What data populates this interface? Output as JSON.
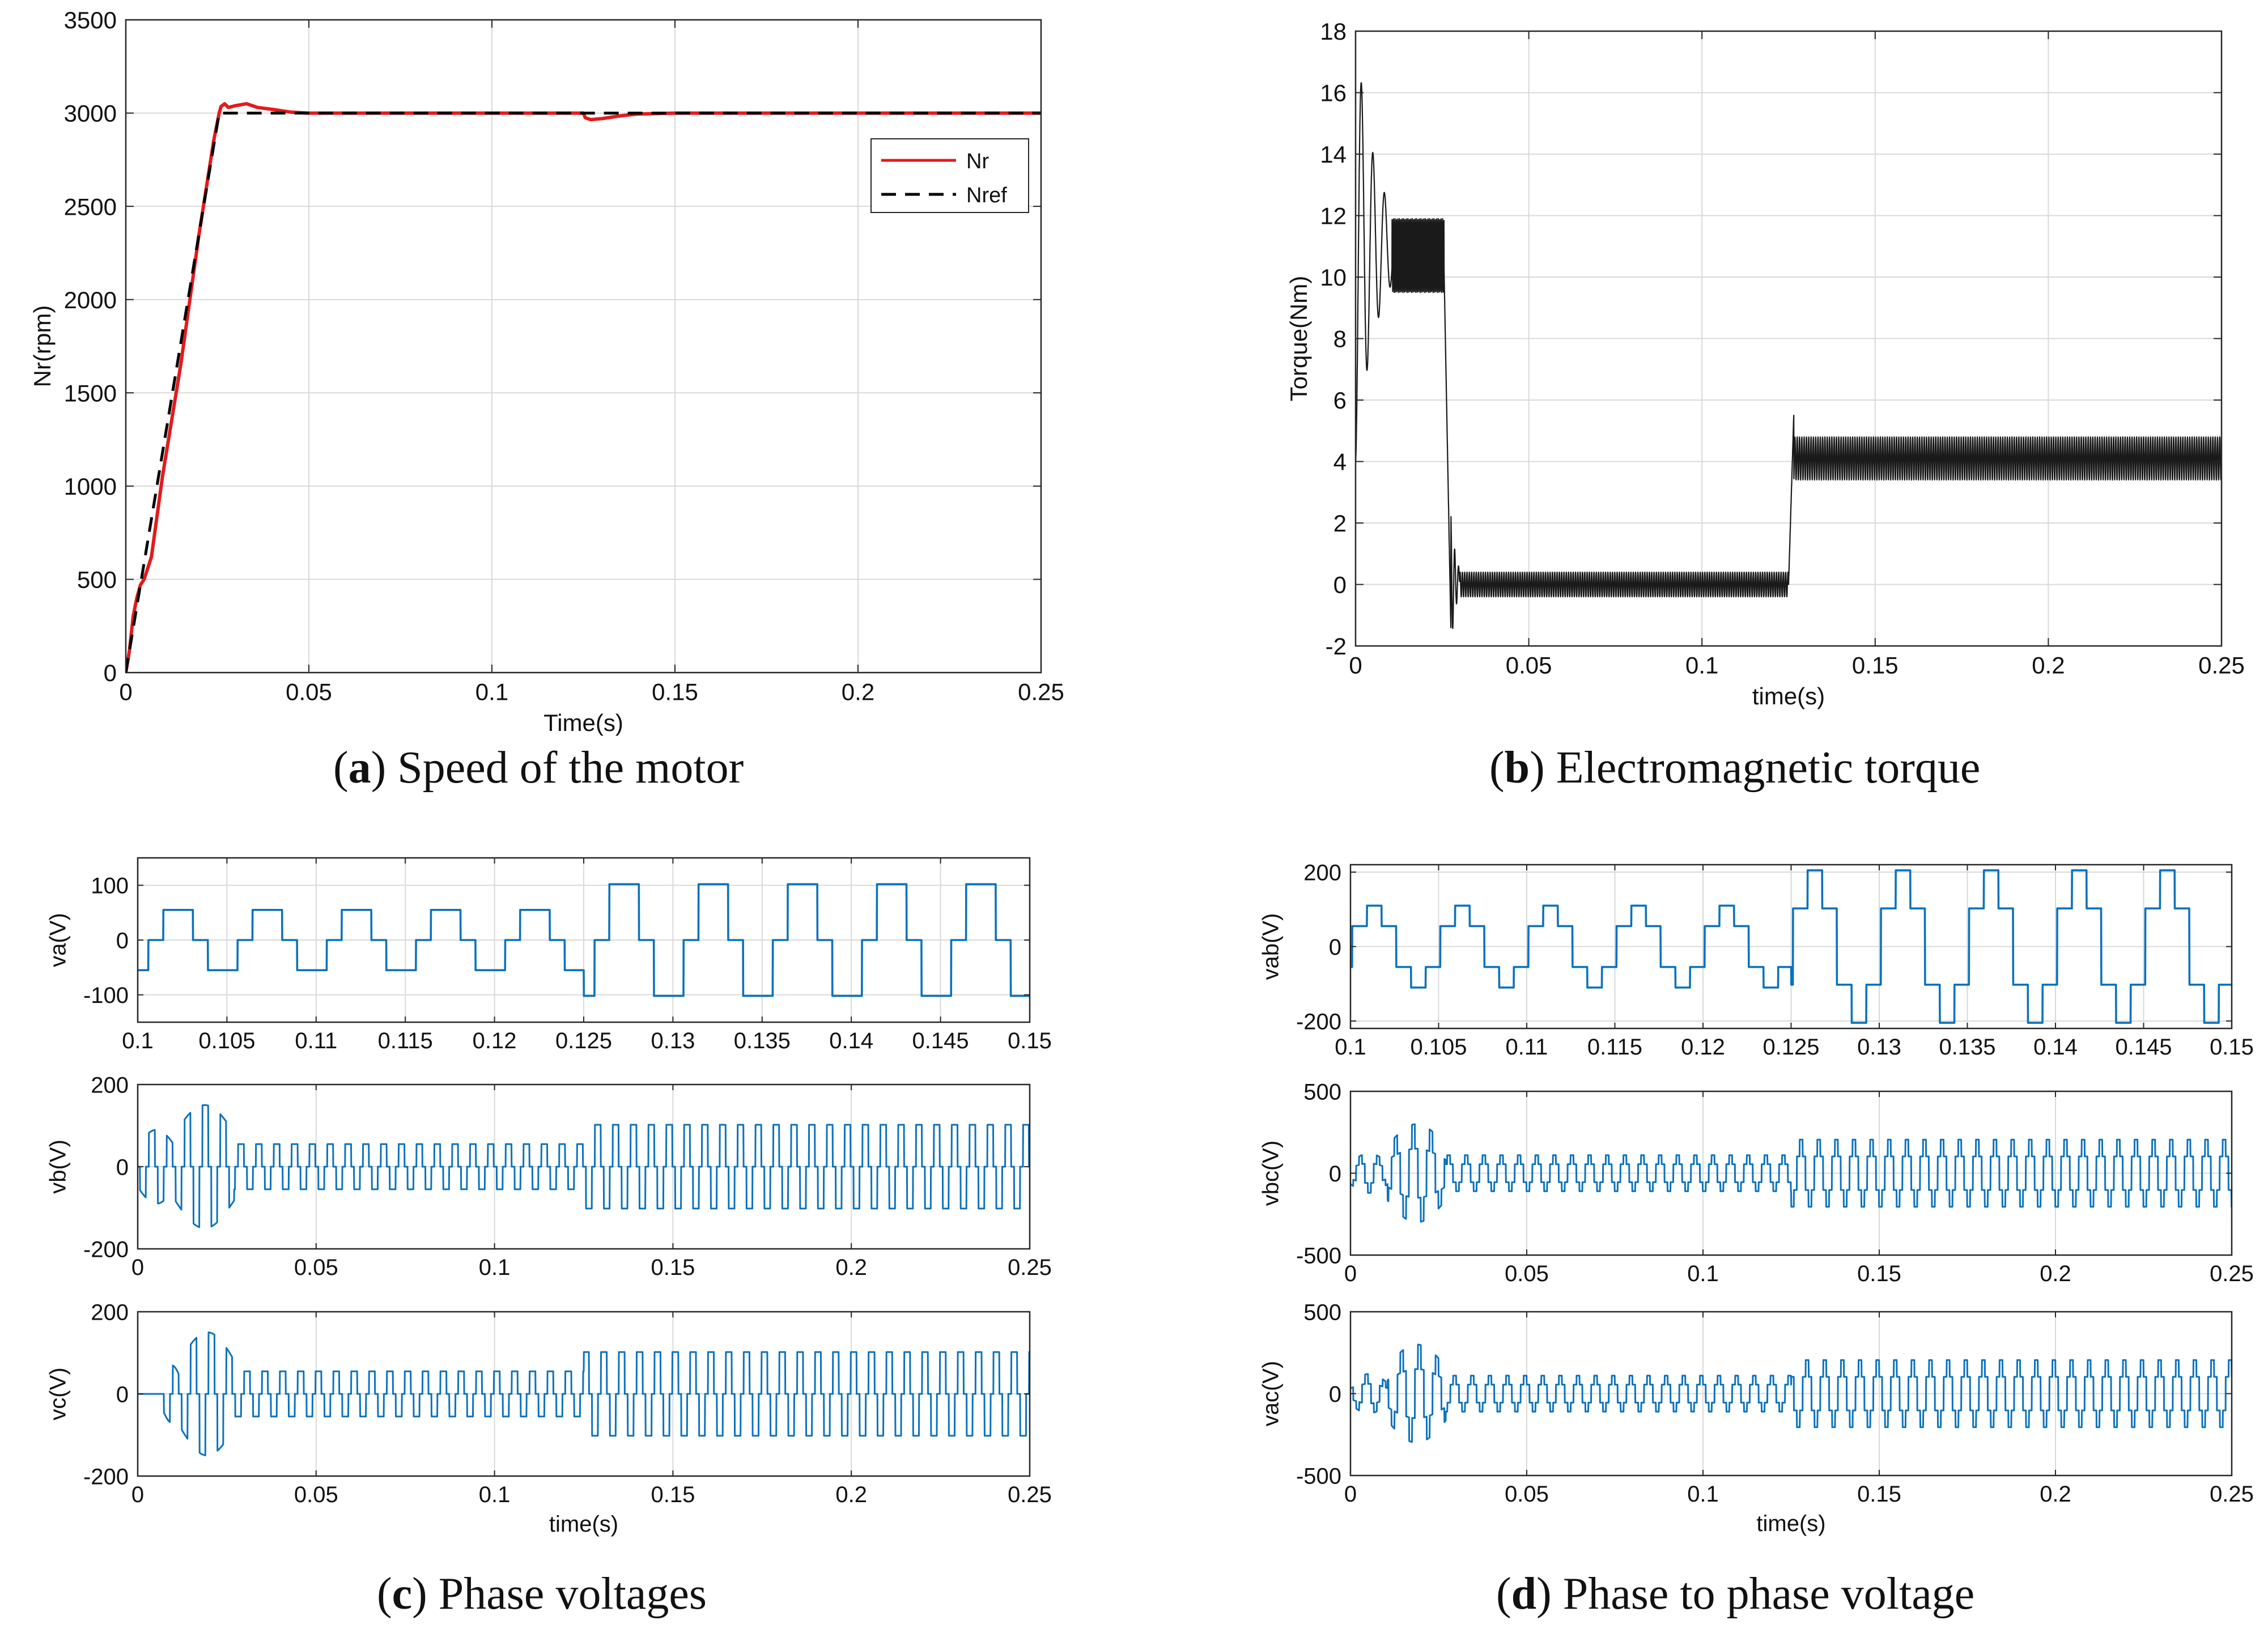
{
  "colors": {
    "nr": "#e41a1c",
    "nref": "#000000",
    "torque": "#1a1a1a",
    "voltage": "#0b72bd",
    "grid": "#d9d9d9",
    "axis": "#262626"
  },
  "captions": {
    "a": {
      "letter": "a",
      "text": ") Speed of the motor"
    },
    "b": {
      "letter": "b",
      "text": ") Electromagnetic torque"
    },
    "c": {
      "letter": "c",
      "text": ") Phase voltages"
    },
    "d": {
      "letter": "d",
      "text": ") Phase to phase voltage"
    }
  },
  "chart_data": [
    {
      "id": "speed",
      "type": "line",
      "title": "(a) Speed of the motor",
      "xlabel": "Time(s)",
      "ylabel": "Nr(rpm)",
      "xlim": [
        0,
        0.25
      ],
      "ylim": [
        0,
        3500
      ],
      "xticks": [
        0,
        0.05,
        0.1,
        0.15,
        0.2,
        0.25
      ],
      "xtick_labels": [
        "0",
        "0.05",
        "0.1",
        "0.15",
        "0.2",
        "0.25"
      ],
      "yticks": [
        0,
        500,
        1000,
        1500,
        2000,
        2500,
        3000,
        3500
      ],
      "ytick_labels": [
        "0",
        "500",
        "1000",
        "1500",
        "2000",
        "2500",
        "3000",
        "3500"
      ],
      "grid": true,
      "legend": {
        "position": "right",
        "entries": [
          "Nr",
          "Nref"
        ]
      },
      "series": [
        {
          "name": "Nr",
          "style": "solid",
          "x": [
            0,
            0.001,
            0.002,
            0.003,
            0.004,
            0.005,
            0.007,
            0.01,
            0.015,
            0.02,
            0.024,
            0.0255,
            0.026,
            0.027,
            0.028,
            0.03,
            0.033,
            0.036,
            0.04,
            0.045,
            0.05,
            0.1,
            0.125,
            0.1255,
            0.127,
            0.13,
            0.135,
            0.14,
            0.15,
            0.25
          ],
          "y": [
            0,
            120,
            300,
            400,
            470,
            500,
            620,
            1050,
            1650,
            2350,
            2850,
            3000,
            3035,
            3050,
            3030,
            3040,
            3050,
            3030,
            3020,
            3005,
            3000,
            3000,
            3000,
            2975,
            2965,
            2970,
            2985,
            2995,
            3000,
            3000
          ]
        },
        {
          "name": "Nref",
          "style": "dashed",
          "x": [
            0,
            0.0255,
            0.25
          ],
          "y": [
            0,
            3000,
            3000
          ]
        }
      ]
    },
    {
      "id": "torque",
      "type": "line",
      "title": "(b) Electromagnetic torque",
      "xlabel": "time(s)",
      "ylabel": "Torque(Nm)",
      "xlim": [
        0,
        0.25
      ],
      "ylim": [
        -2,
        18
      ],
      "xticks": [
        0,
        0.05,
        0.1,
        0.15,
        0.2,
        0.25
      ],
      "xtick_labels": [
        "0",
        "0.05",
        "0.1",
        "0.15",
        "0.2",
        "0.25"
      ],
      "yticks": [
        -2,
        0,
        2,
        4,
        6,
        8,
        10,
        12,
        14,
        16,
        18
      ],
      "ytick_labels": [
        "-2",
        "0",
        "2",
        "4",
        "6",
        "8",
        "10",
        "12",
        "14",
        "16",
        "18"
      ],
      "grid": true,
      "series": [
        {
          "name": "Torque",
          "envelope": [
            {
              "t0": 0,
              "t1": 0.0105,
              "model": "damped",
              "mean": 11,
              "amp0": 7,
              "decay": 0.006,
              "freq": 300
            },
            {
              "t0": 0.0105,
              "t1": 0.0255,
              "model": "ripple",
              "mean": 10.7,
              "amp": 1.2,
              "freq": 2400
            },
            {
              "t0": 0.0255,
              "t1": 0.0275,
              "model": "ramp",
              "from": 10.5,
              "to": -1.4
            },
            {
              "t0": 0.0275,
              "t1": 0.03,
              "model": "damped",
              "mean": 0.1,
              "amp0": 2.2,
              "decay": 0.0015,
              "freq": 900
            },
            {
              "t0": 0.03,
              "t1": 0.125,
              "model": "ripple",
              "mean": 0,
              "amp": 0.4,
              "freq": 1500
            },
            {
              "t0": 0.125,
              "t1": 0.1265,
              "model": "ramp",
              "from": 0,
              "to": 5.5
            },
            {
              "t0": 0.1265,
              "t1": 0.25,
              "model": "ripple",
              "mean": 4.1,
              "amp": 0.7,
              "freq": 1500
            }
          ]
        }
      ]
    },
    {
      "id": "va",
      "type": "line",
      "ylabel": "va(V)",
      "xlim": [
        0.1,
        0.15
      ],
      "ylim": [
        -150,
        150
      ],
      "xticks": [
        0.1,
        0.105,
        0.11,
        0.115,
        0.12,
        0.125,
        0.13,
        0.135,
        0.14,
        0.145,
        0.15
      ],
      "xtick_labels": [
        "0.1",
        "0.105",
        "0.11",
        "0.115",
        "0.12",
        "0.125",
        "0.13",
        "0.135",
        "0.14",
        "0.145",
        "0.15"
      ],
      "yticks": [
        -100,
        0,
        100
      ],
      "ytick_labels": [
        "-100",
        "0",
        "100"
      ],
      "grid": true,
      "series": [
        {
          "name": "va",
          "waveform": "six-step-phase",
          "period": 0.005,
          "phase": 0.0006,
          "segments": [
            {
              "t0": 0.1,
              "t1": 0.125,
              "amp": 55
            },
            {
              "t0": 0.125,
              "t1": 0.15,
              "amp": 102
            }
          ]
        }
      ]
    },
    {
      "id": "vb",
      "type": "line",
      "ylabel": "vb(V)",
      "xlim": [
        0,
        0.25
      ],
      "ylim": [
        -200,
        200
      ],
      "xticks": [
        0,
        0.05,
        0.1,
        0.15,
        0.2,
        0.25
      ],
      "xtick_labels": [
        "0",
        "0.05",
        "0.1",
        "0.15",
        "0.2",
        "0.25"
      ],
      "yticks": [
        -200,
        0,
        200
      ],
      "ytick_labels": [
        "-200",
        "0",
        "200"
      ],
      "grid": true,
      "series": [
        {
          "name": "vb",
          "waveform": "six-step-phase",
          "period": 0.005,
          "phase": 0.0023,
          "segments": [
            {
              "t0": 0,
              "t1": 0.0105,
              "amp": 90,
              "startup": true
            },
            {
              "t0": 0.0105,
              "t1": 0.027,
              "amp": 150,
              "startup": true
            },
            {
              "t0": 0.027,
              "t1": 0.125,
              "amp": 55
            },
            {
              "t0": 0.125,
              "t1": 0.25,
              "amp": 102
            }
          ]
        }
      ]
    },
    {
      "id": "vc",
      "type": "line",
      "ylabel": "vc(V)",
      "xlabel": "time(s)",
      "xlim": [
        0,
        0.25
      ],
      "ylim": [
        -200,
        200
      ],
      "xticks": [
        0,
        0.05,
        0.1,
        0.15,
        0.2,
        0.25
      ],
      "xtick_labels": [
        "0",
        "0.05",
        "0.1",
        "0.15",
        "0.2",
        "0.25"
      ],
      "yticks": [
        -200,
        0,
        200
      ],
      "ytick_labels": [
        "-200",
        "0",
        "200"
      ],
      "grid": true,
      "series": [
        {
          "name": "vc",
          "waveform": "six-step-phase",
          "period": 0.005,
          "phase": 0.004,
          "segments": [
            {
              "t0": 0,
              "t1": 0.007,
              "amp": 0
            },
            {
              "t0": 0.007,
              "t1": 0.012,
              "amp": 70,
              "startup": true
            },
            {
              "t0": 0.012,
              "t1": 0.027,
              "amp": 150,
              "startup": true
            },
            {
              "t0": 0.027,
              "t1": 0.125,
              "amp": 55
            },
            {
              "t0": 0.125,
              "t1": 0.25,
              "amp": 102
            }
          ]
        }
      ]
    },
    {
      "id": "vab",
      "type": "line",
      "ylabel": "vab(V)",
      "xlim": [
        0.1,
        0.15
      ],
      "ylim": [
        -220,
        220
      ],
      "xticks": [
        0.1,
        0.105,
        0.11,
        0.115,
        0.12,
        0.125,
        0.13,
        0.135,
        0.14,
        0.145,
        0.15
      ],
      "xtick_labels": [
        "0.1",
        "0.105",
        "0.11",
        "0.115",
        "0.12",
        "0.125",
        "0.13",
        "0.135",
        "0.14",
        "0.145",
        "0.15"
      ],
      "yticks": [
        -200,
        0,
        200
      ],
      "ytick_labels": [
        "-200",
        "0",
        "200"
      ],
      "grid": true,
      "series": [
        {
          "name": "vab",
          "waveform": "six-step-line",
          "period": 0.005,
          "phase": 0.0001,
          "segments": [
            {
              "t0": 0.1,
              "t1": 0.125,
              "amp": 110
            },
            {
              "t0": 0.125,
              "t1": 0.15,
              "amp": 205
            }
          ]
        }
      ]
    },
    {
      "id": "vbc",
      "type": "line",
      "ylabel": "vbc(V)",
      "xlim": [
        0,
        0.25
      ],
      "ylim": [
        -500,
        500
      ],
      "xticks": [
        0,
        0.05,
        0.1,
        0.15,
        0.2,
        0.25
      ],
      "xtick_labels": [
        "0",
        "0.05",
        "0.1",
        "0.15",
        "0.2",
        "0.25"
      ],
      "yticks": [
        -500,
        0,
        500
      ],
      "ytick_labels": [
        "-500",
        "0",
        "500"
      ],
      "grid": true,
      "series": [
        {
          "name": "vbc",
          "waveform": "six-step-line",
          "period": 0.005,
          "phase": 0.0016,
          "segments": [
            {
              "t0": 0,
              "t1": 0.0105,
              "amp": 120,
              "startup": true
            },
            {
              "t0": 0.0105,
              "t1": 0.027,
              "amp": 300,
              "startup": true
            },
            {
              "t0": 0.027,
              "t1": 0.125,
              "amp": 110
            },
            {
              "t0": 0.125,
              "t1": 0.25,
              "amp": 205
            }
          ]
        }
      ]
    },
    {
      "id": "vac",
      "type": "line",
      "ylabel": "vac(V)",
      "xlabel": "time(s)",
      "xlim": [
        0,
        0.25
      ],
      "ylim": [
        -500,
        500
      ],
      "xticks": [
        0,
        0.05,
        0.1,
        0.15,
        0.2,
        0.25
      ],
      "xtick_labels": [
        "0",
        "0.05",
        "0.1",
        "0.15",
        "0.2",
        "0.25"
      ],
      "yticks": [
        -500,
        0,
        500
      ],
      "ytick_labels": [
        "-500",
        "0",
        "500"
      ],
      "grid": true,
      "series": [
        {
          "name": "vac",
          "waveform": "six-step-line",
          "period": 0.005,
          "phase": 0.0033,
          "segments": [
            {
              "t0": 0,
              "t1": 0.0105,
              "amp": 120,
              "startup": true
            },
            {
              "t0": 0.0105,
              "t1": 0.027,
              "amp": 300,
              "startup": true
            },
            {
              "t0": 0.027,
              "t1": 0.125,
              "amp": 110
            },
            {
              "t0": 0.125,
              "t1": 0.25,
              "amp": 205
            }
          ]
        }
      ]
    }
  ]
}
